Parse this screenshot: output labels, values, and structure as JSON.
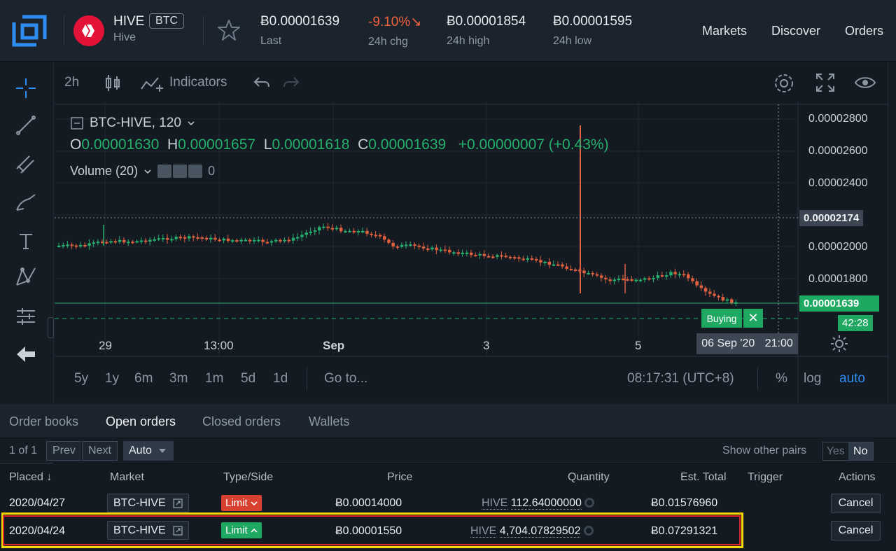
{
  "header": {
    "coin_symbol": "HIVE",
    "coin_badge": "BTC",
    "coin_name": "Hive",
    "stats": [
      {
        "value": "Ƀ0.00001639",
        "label": "Last"
      },
      {
        "value": "-9.10%↘",
        "label": "24h chg"
      },
      {
        "value": "Ƀ0.00001854",
        "label": "24h high"
      },
      {
        "value": "Ƀ0.00001595",
        "label": "24h low"
      }
    ],
    "nav": [
      "Markets",
      "Discover",
      "Orders"
    ]
  },
  "chart_toolbar": {
    "interval": "2h",
    "indicators": "Indicators"
  },
  "legend": {
    "symbol": "BTC-HIVE, 120",
    "o_label": "O",
    "o": "0.00001630",
    "h_label": "H",
    "h": "0.00001657",
    "l_label": "L",
    "l": "0.00001618",
    "c_label": "C",
    "c": "0.00001639",
    "change": "+0.00000007 (+0.43%)",
    "volume": "Volume (20)",
    "volume_value": "0"
  },
  "price_axis": {
    "ticks": [
      "0.00002800",
      "0.00002600",
      "0.00002400",
      "0.00002000",
      "0.00001800"
    ],
    "crosshair_price": "0.00002174",
    "last_price": "0.00001639",
    "countdown": "42:28"
  },
  "time_axis": {
    "labels": [
      "29",
      "13:00",
      "Sep",
      "3",
      "5"
    ],
    "crosshair_date": "06 Sep '20",
    "crosshair_time": "21:00"
  },
  "buying_label": "Buying",
  "range_bar": {
    "ranges": [
      "5y",
      "1y",
      "6m",
      "3m",
      "1m",
      "5d",
      "1d"
    ],
    "goto": "Go to...",
    "clock": "08:17:31 (UTC+8)",
    "percent": "%",
    "log": "log",
    "auto": "auto"
  },
  "tabs": [
    "Order books",
    "Open orders",
    "Closed orders",
    "Wallets"
  ],
  "pager": {
    "count": "1 of 1",
    "prev": "Prev",
    "next": "Next",
    "auto": "Auto",
    "show_other_pairs": "Show other pairs",
    "yes": "Yes",
    "no": "No"
  },
  "table": {
    "headers": [
      "Placed ↓",
      "Market",
      "Type/Side",
      "Price",
      "Quantity",
      "Est. Total",
      "Trigger",
      "Actions"
    ],
    "rows": [
      {
        "placed": "2020/04/27",
        "market": "BTC-HIVE",
        "type": "Limit",
        "price": "Ƀ0.00014000",
        "qty_unit": "HIVE",
        "qty": "112.64000000",
        "total": "Ƀ0.01576960",
        "action": "Cancel",
        "side": "sell"
      },
      {
        "placed": "2020/04/24",
        "market": "BTC-HIVE",
        "type": "Limit",
        "price": "Ƀ0.00001550",
        "qty_unit": "HIVE",
        "qty": "4,704.07829502",
        "total": "Ƀ0.07291321",
        "action": "Cancel",
        "side": "buy"
      }
    ]
  },
  "colors": {
    "up": "#26b06e",
    "down": "#e0603f",
    "negative": "#f0643c",
    "highlight_outer": "#f5d800",
    "highlight_inner": "#e0242b"
  }
}
